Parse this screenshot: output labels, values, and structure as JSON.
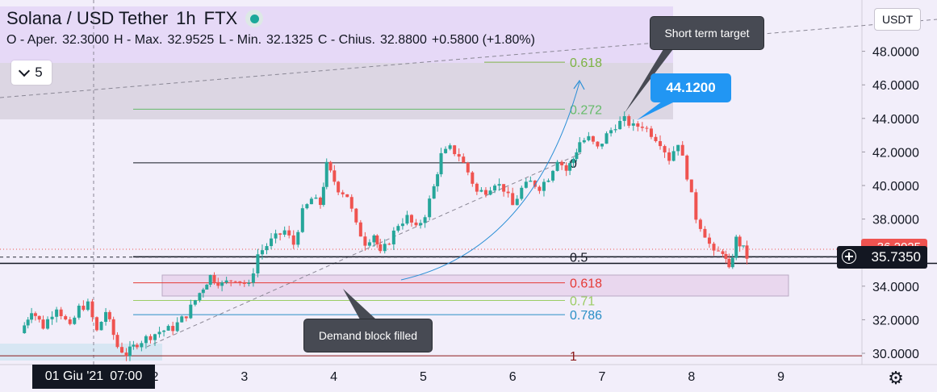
{
  "header": {
    "symbol": "Solana / USD Tether",
    "timeframe": "1h",
    "exchange": "FTX",
    "ohlc": {
      "open_label": "O - Aper.",
      "open": "32.3000",
      "high_label": "H - Max.",
      "high": "32.9525",
      "low_label": "L - Min.",
      "low": "32.1325",
      "close_label": "C - Chius.",
      "close": "32.8800",
      "change": "+0.5800 (+1.80%)"
    },
    "indicators_count": "5"
  },
  "currency_button": "USDT",
  "last_price_label": "35.7350",
  "previous_price_label": "36.2025",
  "crosshair_time_label": {
    "date": "01 Giu '21",
    "time": "07:00"
  },
  "annotations": {
    "short_term_target": "Short term target",
    "target_price": "44.1200",
    "demand_block": "Demand block filled"
  },
  "fib_levels": [
    {
      "label": "0.618",
      "value": 47.35,
      "color": "#7cb342"
    },
    {
      "label": "0.272",
      "value": 44.55,
      "color": "#66bb6a"
    },
    {
      "label": "0",
      "value": 41.35,
      "color": "#131722"
    },
    {
      "label": "0.5",
      "value": 35.75,
      "color": "#131722"
    },
    {
      "label": "0.618",
      "value": 34.2,
      "color": "#e53935"
    },
    {
      "label": "0.71",
      "value": 33.15,
      "color": "#9ccc65"
    },
    {
      "label": "0.786",
      "value": 32.3,
      "color": "#2a8fc6"
    },
    {
      "label": "1",
      "value": 29.85,
      "color": "#8b1a1a"
    }
  ],
  "colors": {
    "up": "#26a69a",
    "down": "#ef5350",
    "background": "#f2eefa"
  },
  "chart_data": {
    "type": "candlestick",
    "title": "Solana / USD Tether",
    "x_tick_labels": [
      "2",
      "3",
      "4",
      "5",
      "6",
      "7",
      "8",
      "9"
    ],
    "x_ticks_day": [
      2,
      3,
      4,
      5,
      6,
      7,
      8,
      9
    ],
    "y_tick_labels": [
      "30.0000",
      "32.0000",
      "34.0000",
      "36.0000",
      "38.0000",
      "40.0000",
      "42.0000",
      "44.0000",
      "46.0000",
      "48.0000"
    ],
    "y_ticks": [
      30,
      32,
      34,
      36,
      38,
      40,
      42,
      44,
      46,
      48
    ],
    "ylim": [
      29.5,
      49.5
    ],
    "xlim_day": [
      0.4,
      9.9
    ],
    "unit": "USDT",
    "close_path": [
      [
        0.5,
        31.2
      ],
      [
        0.62,
        32.6
      ],
      [
        0.75,
        31.6
      ],
      [
        0.9,
        32.8
      ],
      [
        1.05,
        31.5
      ],
      [
        1.15,
        32.7
      ],
      [
        1.25,
        32.9
      ],
      [
        1.35,
        31.3
      ],
      [
        1.45,
        32.5
      ],
      [
        1.58,
        30.4
      ],
      [
        1.68,
        29.95
      ],
      [
        1.8,
        30.6
      ],
      [
        1.9,
        30.9
      ],
      [
        2.05,
        31.3
      ],
      [
        2.2,
        31.5
      ],
      [
        2.35,
        32.3
      ],
      [
        2.5,
        33.6
      ],
      [
        2.62,
        34.6
      ],
      [
        2.75,
        34.1
      ],
      [
        2.9,
        34.5
      ],
      [
        3.05,
        34.0
      ],
      [
        3.15,
        35.9
      ],
      [
        3.3,
        36.7
      ],
      [
        3.45,
        37.3
      ],
      [
        3.55,
        36.5
      ],
      [
        3.65,
        38.4
      ],
      [
        3.75,
        39.2
      ],
      [
        3.85,
        38.9
      ],
      [
        3.92,
        41.2
      ],
      [
        4.05,
        39.8
      ],
      [
        4.15,
        39.4
      ],
      [
        4.25,
        37.6
      ],
      [
        4.35,
        36.6
      ],
      [
        4.45,
        37.1
      ],
      [
        4.52,
        35.9
      ],
      [
        4.62,
        36.7
      ],
      [
        4.72,
        37.7
      ],
      [
        4.82,
        38.1
      ],
      [
        4.92,
        37.4
      ],
      [
        5.02,
        38.3
      ],
      [
        5.12,
        39.9
      ],
      [
        5.2,
        41.8
      ],
      [
        5.3,
        42.2
      ],
      [
        5.4,
        41.8
      ],
      [
        5.5,
        40.8
      ],
      [
        5.6,
        39.6
      ],
      [
        5.7,
        39.7
      ],
      [
        5.8,
        40.2
      ],
      [
        5.9,
        39.8
      ],
      [
        6.0,
        38.8
      ],
      [
        6.1,
        39.8
      ],
      [
        6.2,
        40.2
      ],
      [
        6.3,
        39.9
      ],
      [
        6.4,
        40.5
      ],
      [
        6.5,
        41.6
      ],
      [
        6.6,
        40.9
      ],
      [
        6.68,
        41.6
      ],
      [
        6.75,
        42.6
      ],
      [
        6.85,
        42.8
      ],
      [
        6.95,
        42.2
      ],
      [
        7.05,
        43.0
      ],
      [
        7.15,
        43.6
      ],
      [
        7.25,
        43.9
      ],
      [
        7.35,
        43.5
      ],
      [
        7.45,
        43.6
      ],
      [
        7.55,
        43.1
      ],
      [
        7.65,
        42.6
      ],
      [
        7.75,
        41.6
      ],
      [
        7.85,
        42.6
      ],
      [
        7.95,
        40.6
      ],
      [
        8.05,
        38.1
      ],
      [
        8.15,
        37.1
      ],
      [
        8.25,
        35.9
      ],
      [
        8.35,
        36.1
      ],
      [
        8.42,
        34.9
      ],
      [
        8.5,
        36.8
      ],
      [
        8.58,
        36.2
      ],
      [
        8.62,
        35.73
      ]
    ]
  }
}
